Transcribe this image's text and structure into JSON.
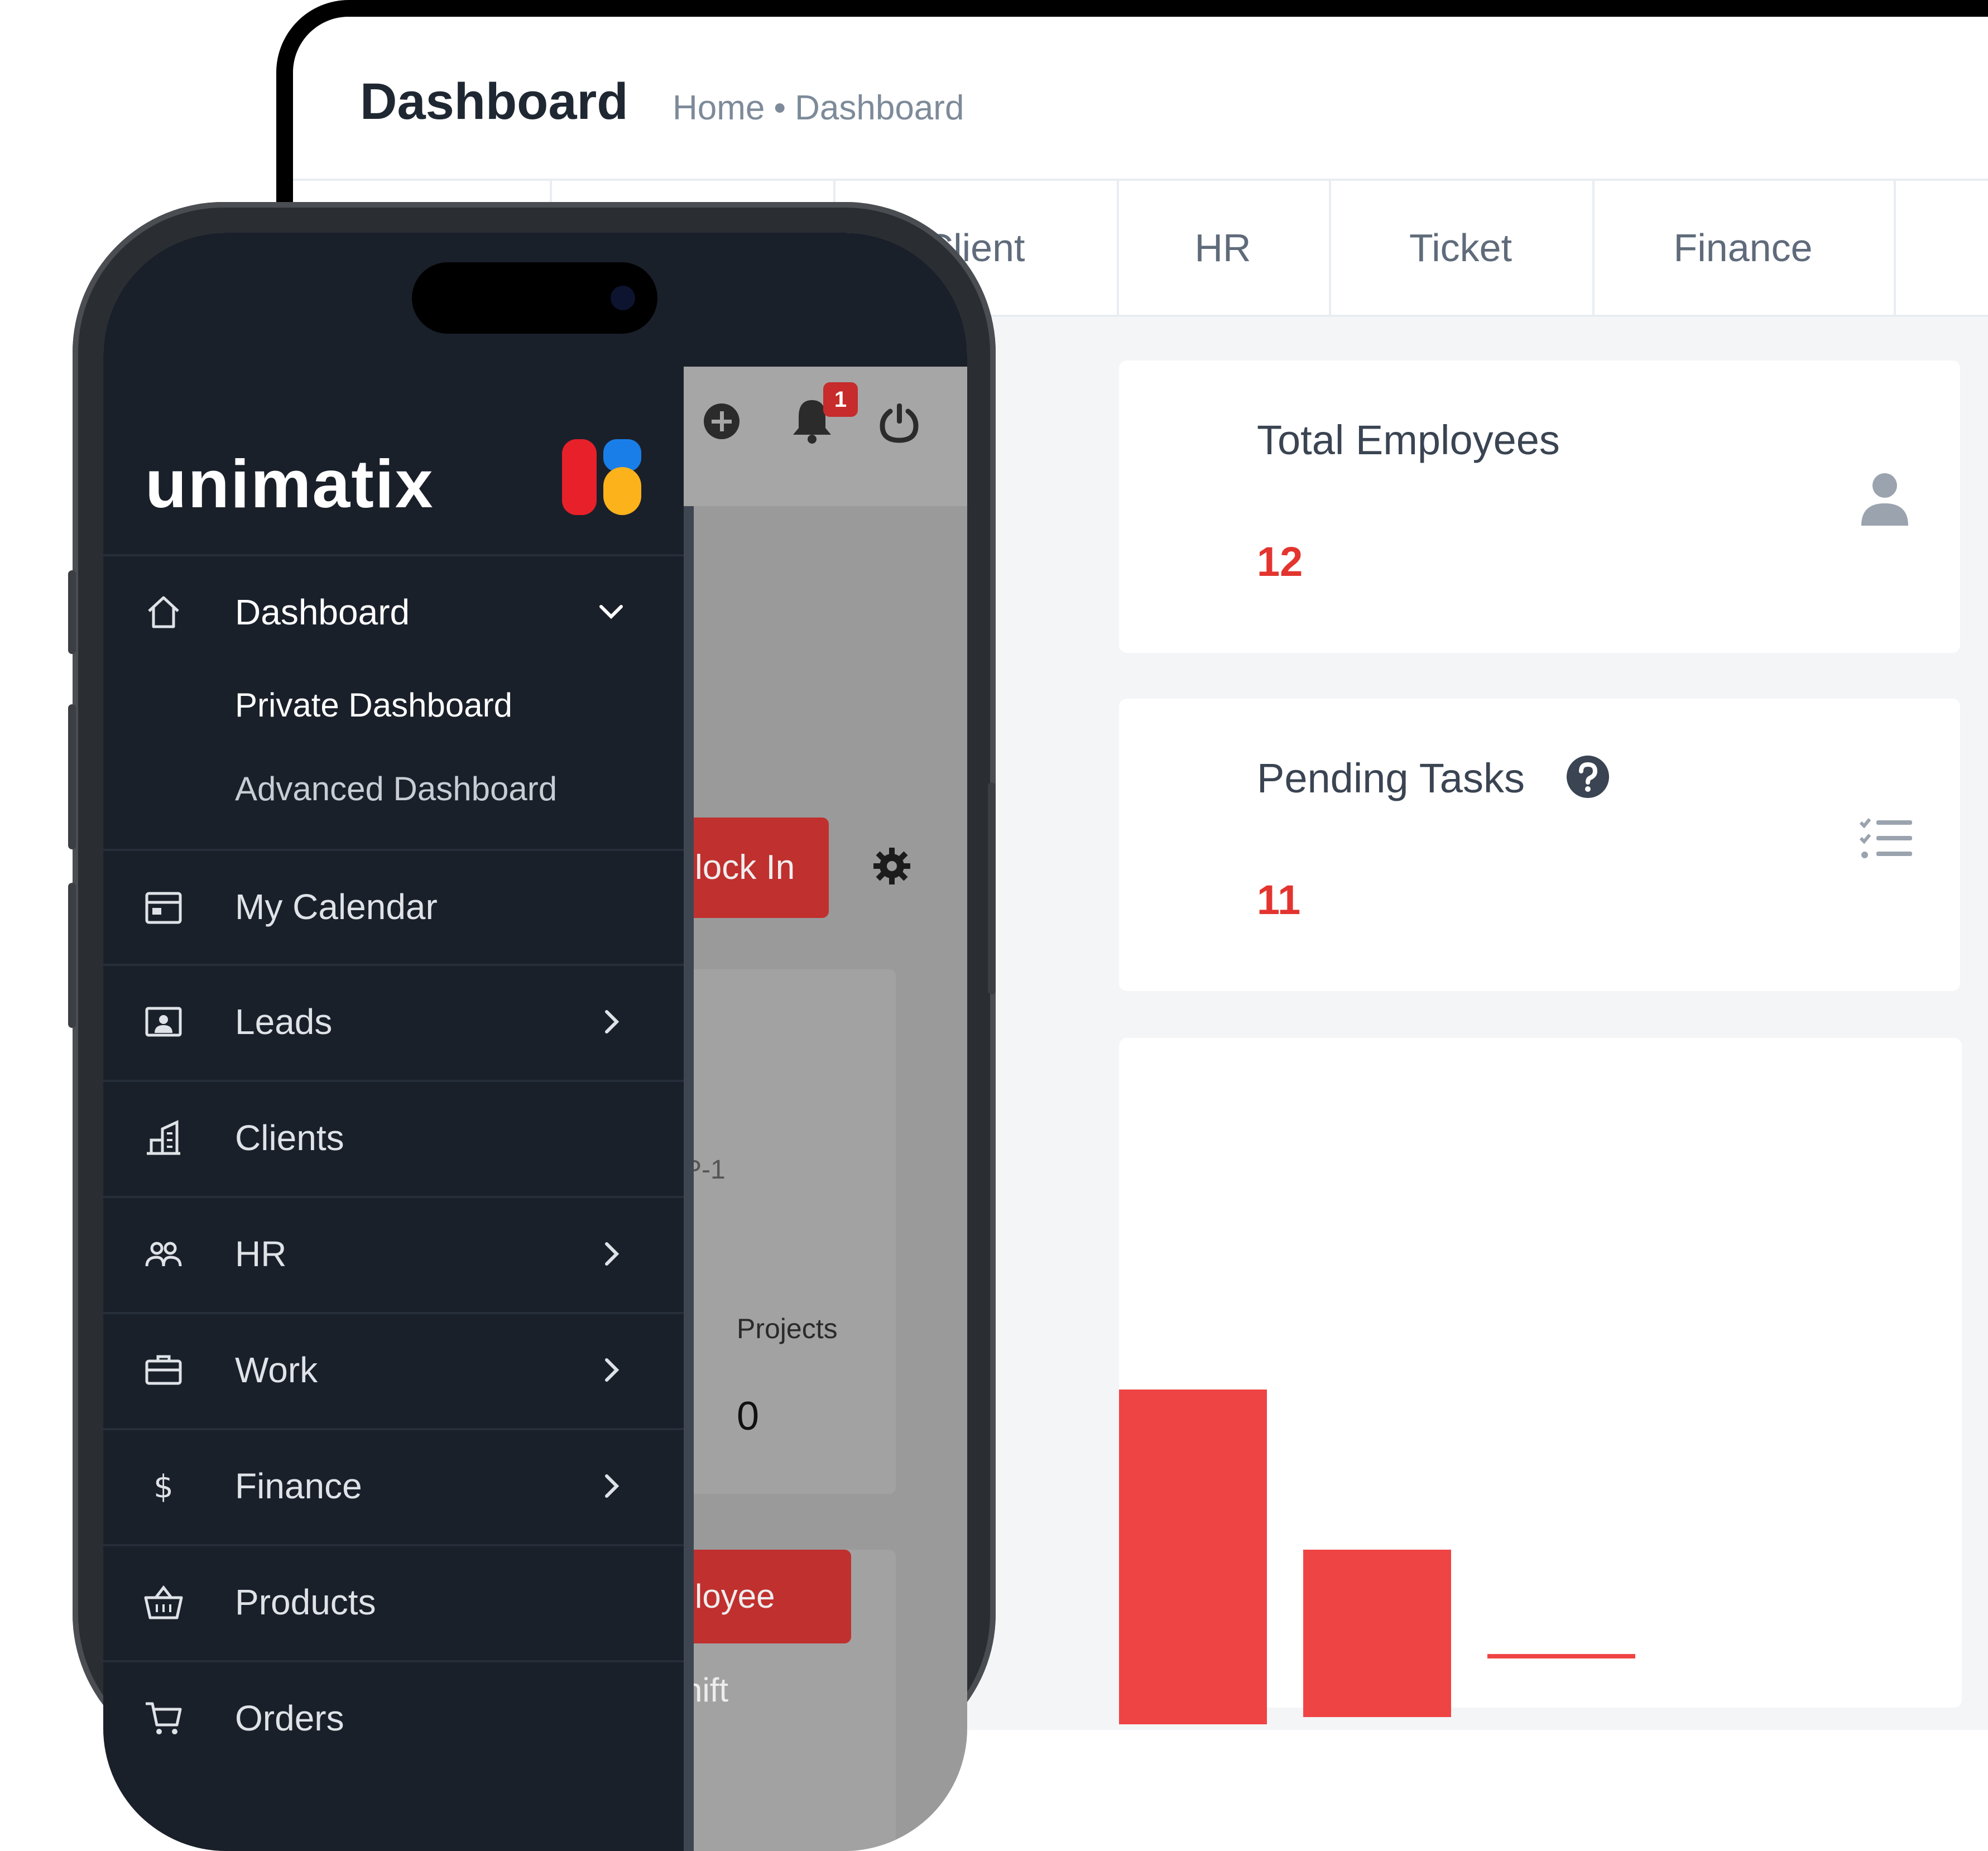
{
  "desktop": {
    "page_title": "Dashboard",
    "breadcrumb": {
      "home": "Home",
      "separator": "•",
      "current": "Dashboard"
    },
    "tabs": [
      "Client",
      "HR",
      "Ticket",
      "Finance"
    ],
    "cards": {
      "total_employees": {
        "title": "Total Employees",
        "value": "12"
      },
      "pending_tasks": {
        "title": "Pending Tasks",
        "value": "11"
      }
    },
    "colors": {
      "accent": "#ef4444",
      "value_red": "#e3342f"
    }
  },
  "phone": {
    "logo": {
      "text": "unimatix"
    },
    "header": {
      "notification_count": "1"
    },
    "behind": {
      "clock_in": "lock In",
      "code": "P-1",
      "projects_label": "Projects",
      "projects_value": "0",
      "employee_shift": "loyee Shift"
    },
    "sidebar": {
      "dashboard": {
        "label": "Dashboard",
        "sub": [
          "Private Dashboard",
          "Advanced Dashboard"
        ]
      },
      "items": [
        {
          "label": "My Calendar",
          "icon": "calendar-icon"
        },
        {
          "label": "Leads",
          "icon": "id-card-icon"
        },
        {
          "label": "Clients",
          "icon": "building-icon"
        },
        {
          "label": "HR",
          "icon": "users-icon"
        },
        {
          "label": "Work",
          "icon": "briefcase-icon"
        },
        {
          "label": "Finance",
          "icon": "dollar-icon"
        },
        {
          "label": "Products",
          "icon": "basket-icon"
        },
        {
          "label": "Orders",
          "icon": "cart-icon"
        }
      ]
    }
  }
}
